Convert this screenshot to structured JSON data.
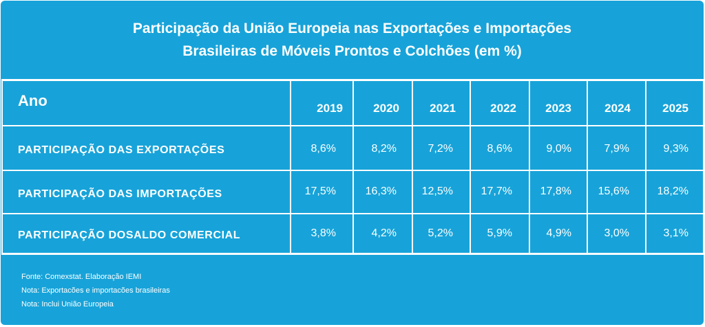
{
  "title": {
    "line1": "Participação da União Europeia nas Exportações e Importações",
    "line2": "Brasileiras de Móveis Prontos e Colchões (em %)"
  },
  "table": {
    "header_label": "Ano",
    "years": [
      "2019",
      "2020",
      "2021",
      "2022",
      "2023",
      "2024",
      "2025"
    ],
    "rows": [
      {
        "label": "PARTICIPAÇÃO DAS EXPORTAÇÕES",
        "values": [
          "8,6%",
          "8,2%",
          "7,2%",
          "8,6%",
          "9,0%",
          "7,9%",
          "9,3%"
        ]
      },
      {
        "label": "PARTICIPAÇÃO DAS IMPORTAÇÕES",
        "values": [
          "17,5%",
          "16,3%",
          "12,5%",
          "17,7%",
          "17,8%",
          "15,6%",
          "18,2%"
        ]
      },
      {
        "label": "PARTICIPAÇÃO DOSALDO COMERCIAL",
        "values": [
          "3,8%",
          "4,2%",
          "5,2%",
          "5,9%",
          "4,9%",
          "3,0%",
          "3,1%"
        ]
      }
    ]
  },
  "notes": [
    "Fonte: Comexstat. Elaboração IEMI",
    "Nota: Exportacões e importacões brasileiras",
    "Nota: Inclui União Europeia"
  ],
  "colors": {
    "background": "#17a3d9",
    "text": "#ffffff",
    "grid": "#ffffff"
  }
}
